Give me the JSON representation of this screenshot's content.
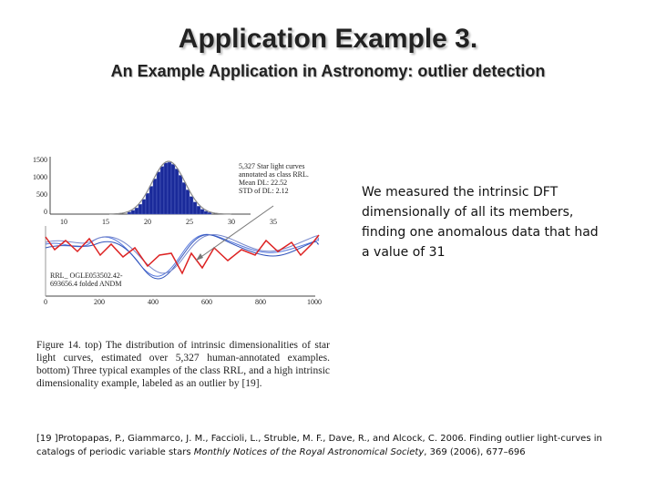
{
  "header": {
    "title": "Application Example 3.",
    "subtitle": "An Example Application in Astronomy: outlier detection"
  },
  "figure": {
    "histogram": {
      "y_tick_labels": [
        "1500",
        "1000",
        "500",
        "0"
      ],
      "x_tick_labels": [
        "10",
        "15",
        "20",
        "25",
        "30",
        "35"
      ],
      "annotation": [
        "5,327 Star light curves",
        "annotated as class RRL.",
        "Mean DL:     22.52",
        "STD of DL:    2.12"
      ]
    },
    "light_curves": {
      "x_tick_labels": [
        "0",
        "200",
        "400",
        "600",
        "800",
        "1000"
      ],
      "outlier_label": [
        "RRL_ OGLE053502.42-",
        "693656.4 folded ANDM"
      ]
    },
    "caption": "Figure 14. top) The distribution of intrinsic dimensionalities of star light curves, estimated over 5,327 human-annotated examples. bottom) Three typical examples of the class RRL, and a high intrinsic dimensionality example, labeled as an outlier by [19]."
  },
  "body": {
    "text": "We measured the intrinsic DFT dimensionally of all its members, finding one anomalous data that had a value of 31"
  },
  "reference": {
    "prefix": "[19 ]Protopapas, P., Giammarco, J. M., Faccioli, L., Struble, M. F., Dave, R., and Alcock, C. 2006. Finding outlier light-curves in catalogs of periodic variable stars ",
    "journal": "Monthly Notices of the Royal Astronomical Society",
    "suffix": ", 369 (2006), 677–696"
  }
}
